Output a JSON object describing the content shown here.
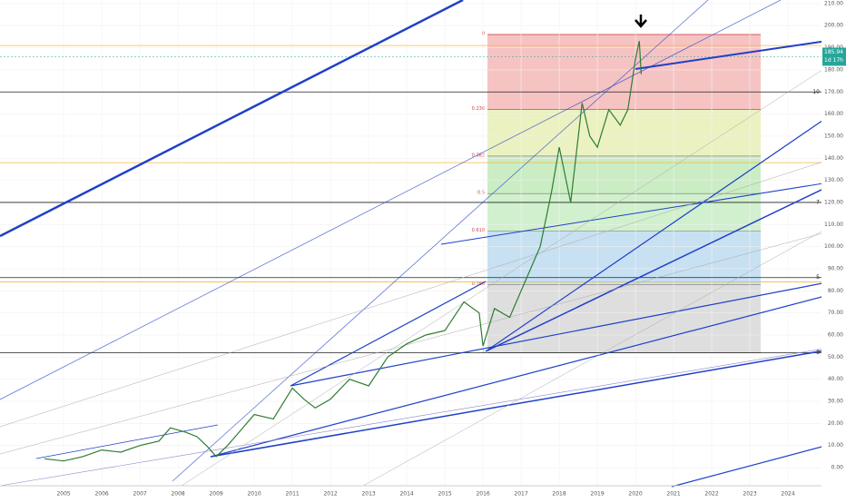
{
  "chart_data": {
    "type": "line",
    "x": [
      2004.5,
      2005,
      2005.5,
      2006,
      2006.5,
      2007,
      2007.5,
      2007.8,
      2008.2,
      2008.5,
      2008.8,
      2009,
      2009.3,
      2009.6,
      2010,
      2010.5,
      2011,
      2011.3,
      2011.6,
      2012,
      2012.5,
      2013,
      2013.5,
      2014,
      2014.5,
      2015,
      2015.5,
      2015.9,
      2016,
      2016.3,
      2016.7,
      2017,
      2017.5,
      2017.8,
      2018,
      2018.3,
      2018.6,
      2018.8,
      2019,
      2019.3,
      2019.6,
      2019.8,
      2020,
      2020.1,
      2020.15
    ],
    "series": [
      {
        "color": "#2e7d32",
        "values": [
          4,
          3,
          5,
          8,
          7,
          10,
          12,
          18,
          16,
          14,
          9,
          5,
          10,
          16,
          24,
          22,
          36,
          31,
          27,
          31,
          40,
          37,
          50,
          56,
          60,
          62,
          75,
          70,
          55,
          72,
          68,
          80,
          100,
          125,
          145,
          120,
          165,
          150,
          145,
          162,
          155,
          162,
          185,
          193,
          178
        ]
      }
    ],
    "xlim": [
      2003.33,
      2024.88
    ],
    "xticks": [
      2005,
      2006,
      2007,
      2008,
      2009,
      2010,
      2011,
      2012,
      2013,
      2014,
      2015,
      2016,
      2017,
      2018,
      2019,
      2020,
      2021,
      2022,
      2023,
      2024
    ],
    "ylim": [
      -8.2,
      211.6
    ],
    "yticks": [
      {
        "value": 0,
        "label": "0.00"
      },
      {
        "value": 10,
        "label": "10.00"
      },
      {
        "value": 20,
        "label": "20.00"
      },
      {
        "value": 30,
        "label": "30.00"
      },
      {
        "value": 40,
        "label": "40.00"
      },
      {
        "value": 50,
        "label": "50.00"
      },
      {
        "value": 60,
        "label": "60.00"
      },
      {
        "value": 70,
        "label": "70.00"
      },
      {
        "value": 80,
        "label": "80.00"
      },
      {
        "value": 90,
        "label": "90.00"
      },
      {
        "value": 100,
        "label": "100.00"
      },
      {
        "value": 110,
        "label": "110.00"
      },
      {
        "value": 120,
        "label": "120.00"
      },
      {
        "value": 130,
        "label": "130.00"
      },
      {
        "value": 140,
        "label": "140.00"
      },
      {
        "value": 150,
        "label": "150.00"
      },
      {
        "value": 160,
        "label": "160.00"
      },
      {
        "value": 170,
        "label": "170.00"
      },
      {
        "value": 180,
        "label": "180.00"
      },
      {
        "value": 190,
        "label": "190.00"
      },
      {
        "value": 200,
        "label": "200.00"
      },
      {
        "value": 210,
        "label": "210.00"
      }
    ],
    "levels": [
      {
        "value": 170,
        "label": "10"
      },
      {
        "value": 120,
        "label": "7"
      },
      {
        "value": 86,
        "label": "5"
      },
      {
        "value": 52,
        "label": "3"
      }
    ],
    "orange_levels": [
      191,
      138,
      84
    ],
    "fib_high": 196,
    "fib_low": 52,
    "fib_ratios": [
      0,
      0.236,
      0.382,
      0.5,
      0.618,
      0.786,
      1
    ],
    "last_price": {
      "value": 185.94,
      "label": "185.94"
    },
    "countdown": "1d 17h"
  }
}
